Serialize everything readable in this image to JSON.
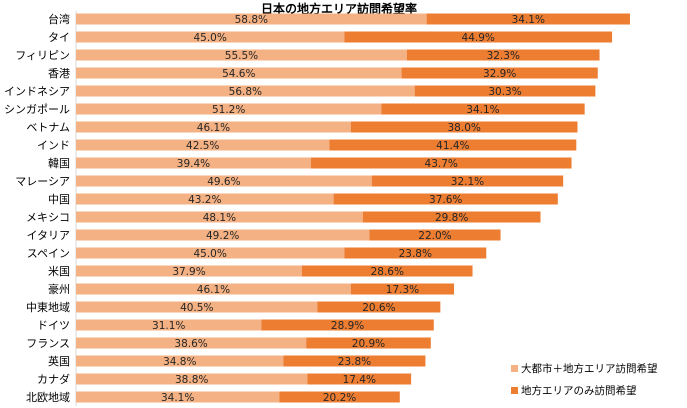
{
  "chart_data": {
    "type": "bar",
    "orientation": "horizontal",
    "stacked": true,
    "title": "日本の地方エリア訪問希望率",
    "xlabel": "",
    "ylabel": "",
    "xlim": [
      0,
      100
    ],
    "grid": false,
    "legend_position": "bottom-right",
    "categories": [
      "台湾",
      "タイ",
      "フィリピン",
      "香港",
      "インドネシア",
      "シンガポール",
      "ベトナム",
      "インド",
      "韓国",
      "マレーシア",
      "中国",
      "メキシコ",
      "イタリア",
      "スペイン",
      "米国",
      "豪州",
      "中東地域",
      "ドイツ",
      "フランス",
      "英国",
      "カナダ",
      "北欧地域"
    ],
    "series": [
      {
        "name": "大都市＋地方エリア訪問希望",
        "color": "#F4B183",
        "values": [
          58.8,
          45.0,
          55.5,
          54.6,
          56.8,
          51.2,
          46.1,
          42.5,
          39.4,
          49.6,
          43.2,
          48.1,
          49.2,
          45.0,
          37.9,
          46.1,
          40.5,
          31.1,
          38.6,
          34.8,
          38.8,
          34.1
        ],
        "labels": [
          "58.8%",
          "45.0%",
          "55.5%",
          "54.6%",
          "56.8%",
          "51.2%",
          "46.1%",
          "42.5%",
          "39.4%",
          "49.6%",
          "43.2%",
          "48.1%",
          "49.2%",
          "45.0%",
          "37.9%",
          "46.1%",
          "40.5%",
          "31.1%",
          "38.6%",
          "34.8%",
          "38.8%",
          "34.1%"
        ]
      },
      {
        "name": "地方エリアのみ訪問希望",
        "color": "#ED7D31",
        "values": [
          34.1,
          44.9,
          32.3,
          32.9,
          30.3,
          34.1,
          38.0,
          41.4,
          43.7,
          32.1,
          37.6,
          29.8,
          22.0,
          23.8,
          28.6,
          17.3,
          20.6,
          28.9,
          20.9,
          23.8,
          17.4,
          20.2
        ],
        "labels": [
          "34.1%",
          "44.9%",
          "32.3%",
          "32.9%",
          "30.3%",
          "34.1%",
          "38.0%",
          "41.4%",
          "43.7%",
          "32.1%",
          "37.6%",
          "29.8%",
          "22.0%",
          "23.8%",
          "28.6%",
          "17.3%",
          "20.6%",
          "28.9%",
          "20.9%",
          "23.8%",
          "17.4%",
          "20.2%"
        ]
      }
    ]
  }
}
